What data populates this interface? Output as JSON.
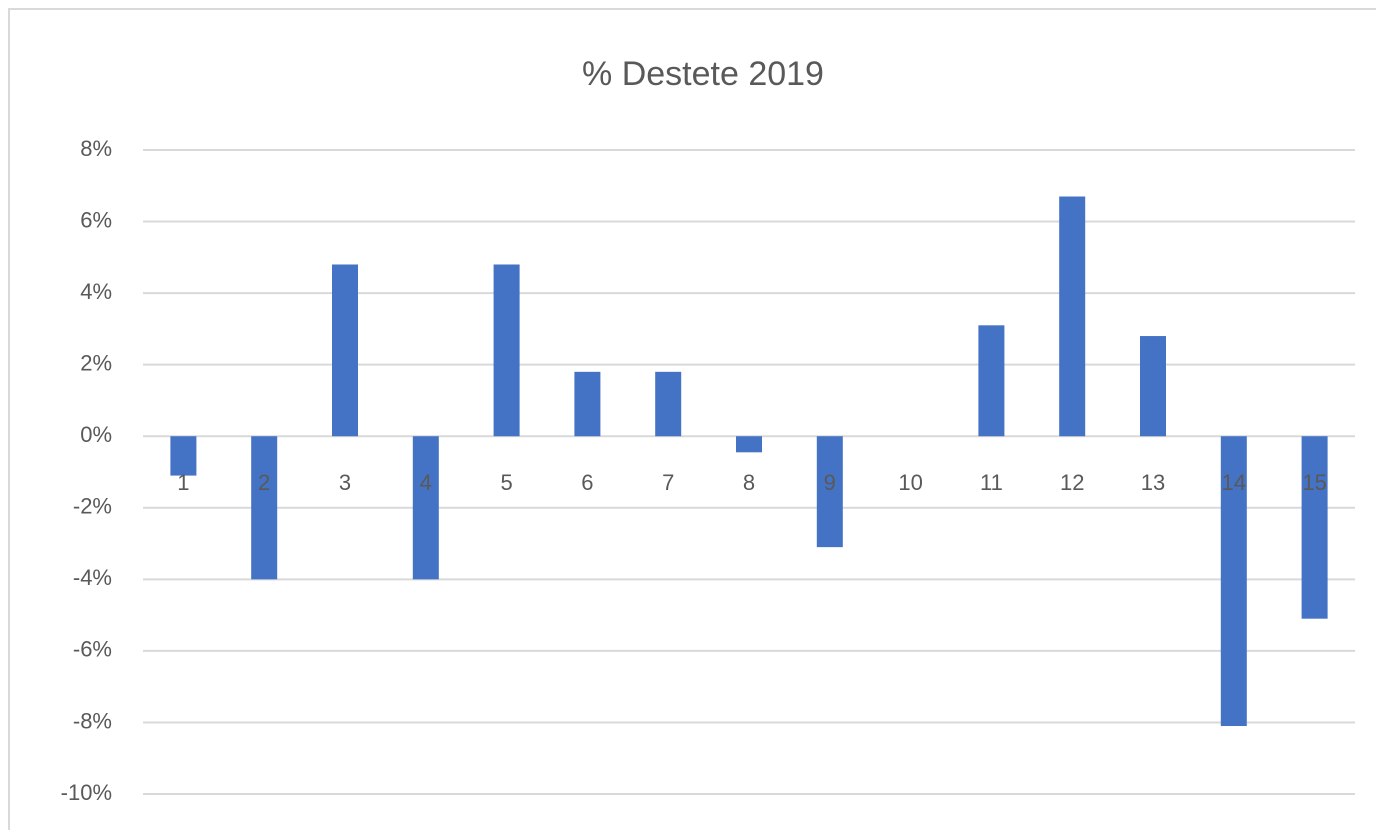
{
  "chart_data": {
    "type": "bar",
    "title": "% Destete 2019",
    "categories": [
      "1",
      "2",
      "3",
      "4",
      "5",
      "6",
      "7",
      "8",
      "9",
      "10",
      "11",
      "12",
      "13",
      "14",
      "15"
    ],
    "values": [
      -1.1,
      -4.0,
      4.8,
      -4.0,
      4.8,
      1.8,
      1.8,
      -0.45,
      -3.1,
      0,
      3.1,
      6.7,
      2.8,
      -8.1,
      -5.1
    ],
    "color": "#4472c4",
    "ylim": [
      -10,
      8
    ],
    "yticks": [
      {
        "value": -10,
        "label": "-10%"
      },
      {
        "value": -8,
        "label": "-8%"
      },
      {
        "value": -6,
        "label": "-6%"
      },
      {
        "value": -4,
        "label": "-4%"
      },
      {
        "value": -2,
        "label": "-2%"
      },
      {
        "value": 0,
        "label": "0%"
      },
      {
        "value": 2,
        "label": "2%"
      },
      {
        "value": 4,
        "label": "4%"
      },
      {
        "value": 6,
        "label": "6%"
      },
      {
        "value": 8,
        "label": "8%"
      }
    ],
    "grid": true
  }
}
